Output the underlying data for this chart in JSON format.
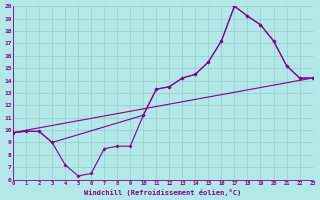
{
  "xlabel": "Windchill (Refroidissement éolien,°C)",
  "xlim": [
    0,
    23
  ],
  "ylim": [
    6,
    20
  ],
  "xticks": [
    0,
    1,
    2,
    3,
    4,
    5,
    6,
    7,
    8,
    9,
    10,
    11,
    12,
    13,
    14,
    15,
    16,
    17,
    18,
    19,
    20,
    21,
    22,
    23
  ],
  "yticks": [
    6,
    7,
    8,
    9,
    10,
    11,
    12,
    13,
    14,
    15,
    16,
    17,
    18,
    19,
    20
  ],
  "bg_color": "#b2e8e8",
  "grid_color": "#99cccc",
  "line_color": "#880088",
  "line1_x": [
    0,
    1,
    2,
    3,
    4,
    5,
    6,
    7,
    8,
    9,
    10,
    11,
    12,
    13,
    14,
    15,
    16,
    17,
    18,
    19,
    20,
    21,
    22,
    23
  ],
  "line1_y": [
    9.8,
    9.9,
    9.9,
    9.0,
    7.2,
    6.3,
    6.5,
    8.5,
    8.7,
    8.7,
    11.2,
    13.3,
    13.5,
    14.2,
    14.5,
    15.5,
    17.2,
    20.0,
    19.2,
    18.5,
    17.2,
    15.2,
    14.2,
    14.2
  ],
  "line2_x": [
    0,
    1,
    2,
    3,
    10,
    11,
    12,
    13,
    14,
    15,
    16,
    17,
    18,
    19,
    20,
    21,
    22,
    23
  ],
  "line2_y": [
    9.8,
    9.9,
    9.9,
    9.0,
    11.2,
    13.3,
    13.5,
    14.2,
    14.5,
    15.5,
    17.2,
    20.0,
    19.2,
    18.5,
    17.2,
    15.2,
    14.2,
    14.2
  ],
  "line3_x": [
    0,
    23
  ],
  "line3_y": [
    9.8,
    14.2
  ]
}
